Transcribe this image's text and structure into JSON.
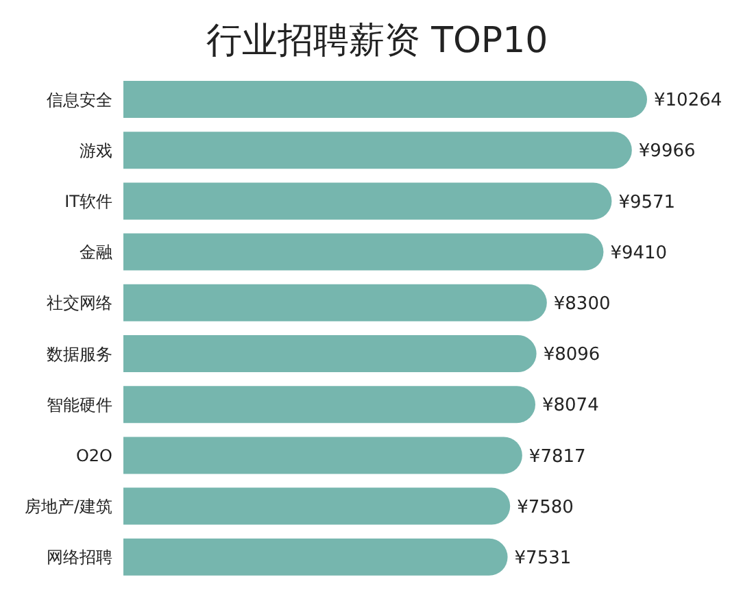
{
  "chart_data": {
    "type": "bar",
    "orientation": "horizontal",
    "title": "行业招聘薪资 TOP10",
    "categories": [
      "信息安全",
      "游戏",
      "IT软件",
      "金融",
      "社交网络",
      "数据服务",
      "智能硬件",
      "O2O",
      "房地产/建筑",
      "网络招聘"
    ],
    "values": [
      10264,
      9966,
      9571,
      9410,
      8300,
      8096,
      8074,
      7817,
      7580,
      7531
    ],
    "value_labels": [
      "¥10264",
      "¥9966",
      "¥9571",
      "¥9410",
      "¥8300",
      "¥8096",
      "¥8074",
      "¥7817",
      "¥7580",
      "¥7531"
    ],
    "color": "#76b6ae"
  }
}
